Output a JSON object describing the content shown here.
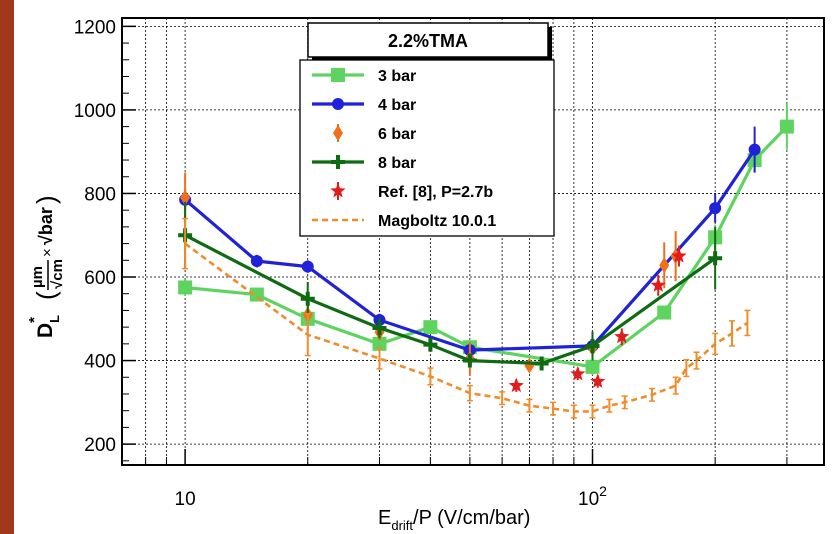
{
  "colors": {
    "left_bar": "#a0391c",
    "series_3bar": "#5fd35f",
    "series_4bar": "#1f22d8",
    "series_6bar": "#f0701a",
    "series_8bar": "#0f6b12",
    "series_ref8": "#e21b1b",
    "series_magboltz": "#f08c2a"
  },
  "chart_data": {
    "type": "line",
    "title": "2.2%TMA",
    "xlabel": "E_drift/P (V/cm/bar)",
    "xlabel_main": "E",
    "xlabel_sub": "drift",
    "xlabel_rest": "/P (V/cm/bar)",
    "ylabel": "D*_L (µm/√cm × √bar)",
    "ylabel_main": "D",
    "ylabel_sub": "L",
    "ylabel_sup": "*",
    "ylabel_frac_num": "µm",
    "ylabel_frac_den": "√cm",
    "ylabel_times": "×",
    "ylabel_sqrt": "√bar",
    "x_scale": "log",
    "xlim": [
      7,
      370
    ],
    "ylim": [
      150,
      1220
    ],
    "x_tick_labels": [
      {
        "value": 10,
        "label": "10"
      },
      {
        "value": 100,
        "label": "10",
        "sup": "2"
      }
    ],
    "y_ticks": [
      200,
      400,
      600,
      800,
      1000,
      1200
    ],
    "grid": true,
    "legend_position": "top-center",
    "series": [
      {
        "name": "3 bar",
        "style": "line",
        "marker": "square",
        "colorKey": "series_3bar",
        "points": [
          {
            "x": 10,
            "y": 575,
            "err": 20
          },
          {
            "x": 15,
            "y": 558,
            "err": 15
          },
          {
            "x": 20,
            "y": 500,
            "err": 25
          },
          {
            "x": 30,
            "y": 440,
            "err": 15
          },
          {
            "x": 40,
            "y": 480,
            "err": 10
          },
          {
            "x": 50,
            "y": 432,
            "err": 10
          },
          {
            "x": 100,
            "y": 385,
            "err": 20
          },
          {
            "x": 150,
            "y": 515,
            "err": 15
          },
          {
            "x": 200,
            "y": 695,
            "err": 30
          },
          {
            "x": 250,
            "y": 880,
            "err": 30
          },
          {
            "x": 300,
            "y": 960,
            "err": 55
          }
        ]
      },
      {
        "name": "4 bar",
        "style": "line",
        "marker": "circle",
        "colorKey": "series_4bar",
        "points": [
          {
            "x": 10,
            "y": 785,
            "err": 25
          },
          {
            "x": 15,
            "y": 638,
            "err": 15
          },
          {
            "x": 20,
            "y": 625,
            "err": 15
          },
          {
            "x": 30,
            "y": 497,
            "err": 15
          },
          {
            "x": 50,
            "y": 425,
            "err": 15
          },
          {
            "x": 100,
            "y": 435,
            "err": 15
          },
          {
            "x": 200,
            "y": 765,
            "err": 35
          },
          {
            "x": 250,
            "y": 905,
            "err": 55
          }
        ]
      },
      {
        "name": "6 bar",
        "style": "points",
        "marker": "diamond",
        "colorKey": "series_6bar",
        "points": [
          {
            "x": 10,
            "y": 790,
            "err": 60
          },
          {
            "x": 20,
            "y": 510,
            "err": 40
          },
          {
            "x": 30,
            "y": 468,
            "err": 20
          },
          {
            "x": 50,
            "y": 405,
            "err": 40
          },
          {
            "x": 70,
            "y": 388,
            "err": 15
          },
          {
            "x": 100,
            "y": 430,
            "err": 30
          },
          {
            "x": 150,
            "y": 628,
            "err": 55
          },
          {
            "x": 160,
            "y": 650,
            "err": 60
          }
        ]
      },
      {
        "name": "8 bar",
        "style": "line",
        "marker": "cross",
        "colorKey": "series_8bar",
        "points": [
          {
            "x": 10,
            "y": 700,
            "err": 80
          },
          {
            "x": 20,
            "y": 548,
            "err": 40
          },
          {
            "x": 30,
            "y": 478,
            "err": 25
          },
          {
            "x": 40,
            "y": 438,
            "err": 15
          },
          {
            "x": 50,
            "y": 400,
            "err": 15
          },
          {
            "x": 75,
            "y": 393,
            "err": 15
          },
          {
            "x": 100,
            "y": 435,
            "err": 35
          },
          {
            "x": 200,
            "y": 645,
            "err": 75
          }
        ]
      },
      {
        "name": "Ref. [8], P=2.7b",
        "style": "points",
        "marker": "star",
        "colorKey": "series_ref8",
        "points": [
          {
            "x": 65,
            "y": 340,
            "err": 15
          },
          {
            "x": 92,
            "y": 368,
            "err": 15
          },
          {
            "x": 103,
            "y": 350,
            "err": 15
          },
          {
            "x": 118,
            "y": 457,
            "err": 20
          },
          {
            "x": 145,
            "y": 580,
            "err": 25
          },
          {
            "x": 163,
            "y": 650,
            "err": 25
          }
        ]
      },
      {
        "name": "Magboltz 10.0.1",
        "style": "dashed",
        "marker": "none",
        "colorKey": "series_magboltz",
        "points": [
          {
            "x": 10,
            "y": 680,
            "err": 60
          },
          {
            "x": 20,
            "y": 462,
            "err": 50
          },
          {
            "x": 30,
            "y": 405,
            "err": 25
          },
          {
            "x": 40,
            "y": 362,
            "err": 20
          },
          {
            "x": 50,
            "y": 322,
            "err": 18
          },
          {
            "x": 60,
            "y": 310,
            "err": 15
          },
          {
            "x": 70,
            "y": 292,
            "err": 15
          },
          {
            "x": 80,
            "y": 285,
            "err": 15
          },
          {
            "x": 90,
            "y": 278,
            "err": 15
          },
          {
            "x": 100,
            "y": 278,
            "err": 15
          },
          {
            "x": 110,
            "y": 292,
            "err": 15
          },
          {
            "x": 120,
            "y": 300,
            "err": 15
          },
          {
            "x": 140,
            "y": 318,
            "err": 15
          },
          {
            "x": 160,
            "y": 340,
            "err": 20
          },
          {
            "x": 170,
            "y": 382,
            "err": 20
          },
          {
            "x": 180,
            "y": 400,
            "err": 20
          },
          {
            "x": 200,
            "y": 440,
            "err": 25
          },
          {
            "x": 220,
            "y": 465,
            "err": 30
          },
          {
            "x": 240,
            "y": 490,
            "err": 30
          }
        ]
      }
    ]
  }
}
